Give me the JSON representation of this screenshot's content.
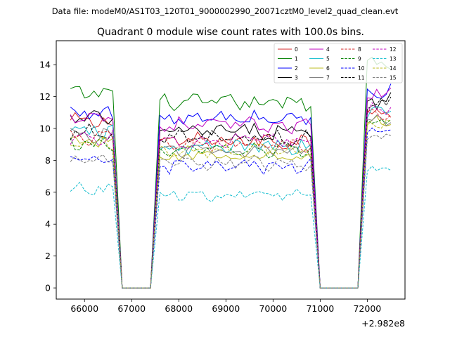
{
  "chart_data": {
    "type": "line",
    "suptitle": "Data file: modeM0/AS1T03_120T01_9000002990_20071cztM0_level2_quad_clean.evt",
    "title": "Quadrant 0 module wise count rates with 100.0s bins.",
    "xlabel": "",
    "ylabel": "",
    "x_offset_label": "+2.982e8",
    "xlim": [
      65400,
      72800
    ],
    "ylim": [
      -0.7,
      15.5
    ],
    "x_ticks": [
      66000,
      67000,
      68000,
      69000,
      70000,
      71000,
      72000
    ],
    "x_tick_labels": [
      "66000",
      "67000",
      "68000",
      "69000",
      "70000",
      "71000",
      "72000"
    ],
    "y_ticks": [
      0,
      2,
      4,
      6,
      8,
      10,
      12,
      14
    ],
    "y_tick_labels": [
      "0",
      "2",
      "4",
      "6",
      "8",
      "10",
      "12",
      "14"
    ],
    "grid": false,
    "legend_position": "top-right",
    "segments": [
      {
        "start": 65700,
        "end": 66600,
        "count": 10
      },
      {
        "start": 66800,
        "end": 67400,
        "count": 7
      },
      {
        "start": 67600,
        "end": 70800,
        "count": 33
      },
      {
        "start": 71000,
        "end": 71800,
        "count": 9
      },
      {
        "start": 72000,
        "end": 72500,
        "count": 6
      }
    ],
    "series": [
      {
        "name": "0",
        "color": "#d62728",
        "dash": "solid",
        "levels": [
          10.4,
          0,
          9.2,
          0,
          11.2
        ],
        "amp": 0.45
      },
      {
        "name": "1",
        "color": "#008000",
        "dash": "solid",
        "levels": [
          12.2,
          0,
          11.6,
          0,
          14.2
        ],
        "amp": 0.4
      },
      {
        "name": "2",
        "color": "#0000ff",
        "dash": "solid",
        "levels": [
          11.0,
          0,
          10.6,
          0,
          12.4
        ],
        "amp": 0.4
      },
      {
        "name": "3",
        "color": "#000000",
        "dash": "solid",
        "levels": [
          10.6,
          0,
          9.8,
          0,
          11.8
        ],
        "amp": 0.4
      },
      {
        "name": "4",
        "color": "#bf00bf",
        "dash": "solid",
        "levels": [
          10.8,
          0,
          10.2,
          0,
          12.2
        ],
        "amp": 0.4
      },
      {
        "name": "5",
        "color": "#17becf",
        "dash": "solid",
        "levels": [
          9.8,
          0,
          8.8,
          0,
          11.0
        ],
        "amp": 0.4
      },
      {
        "name": "6",
        "color": "#bcbd22",
        "dash": "solid",
        "levels": [
          9.2,
          0,
          8.2,
          0,
          10.4
        ],
        "amp": 0.35
      },
      {
        "name": "7",
        "color": "#7f7f7f",
        "dash": "solid",
        "levels": [
          9.6,
          0,
          8.6,
          0,
          10.6
        ],
        "amp": 0.35
      },
      {
        "name": "8",
        "color": "#d62728",
        "dash": "dashed",
        "levels": [
          9.4,
          0,
          9.0,
          0,
          11.0
        ],
        "amp": 0.35
      },
      {
        "name": "9",
        "color": "#008000",
        "dash": "dashed",
        "levels": [
          9.0,
          0,
          8.6,
          0,
          10.6
        ],
        "amp": 0.35
      },
      {
        "name": "10",
        "color": "#0000ff",
        "dash": "dashed",
        "levels": [
          8.0,
          0,
          7.6,
          0,
          10.0
        ],
        "amp": 0.35
      },
      {
        "name": "11",
        "color": "#000000",
        "dash": "dashed",
        "levels": [
          9.8,
          0,
          9.4,
          0,
          11.6
        ],
        "amp": 0.35
      },
      {
        "name": "12",
        "color": "#bf00bf",
        "dash": "dashed",
        "levels": [
          9.4,
          0,
          9.2,
          0,
          11.2
        ],
        "amp": 0.35
      },
      {
        "name": "13",
        "color": "#17becf",
        "dash": "dashed",
        "levels": [
          6.2,
          0,
          5.8,
          0,
          7.4
        ],
        "amp": 0.3
      },
      {
        "name": "14",
        "color": "#bcbd22",
        "dash": "dashed",
        "levels": [
          9.0,
          0,
          8.6,
          0,
          10.4
        ],
        "amp": 0.35
      },
      {
        "name": "15",
        "color": "#7f7f7f",
        "dash": "dashed",
        "levels": [
          8.0,
          0,
          7.8,
          0,
          9.4
        ],
        "amp": 0.35
      }
    ]
  }
}
